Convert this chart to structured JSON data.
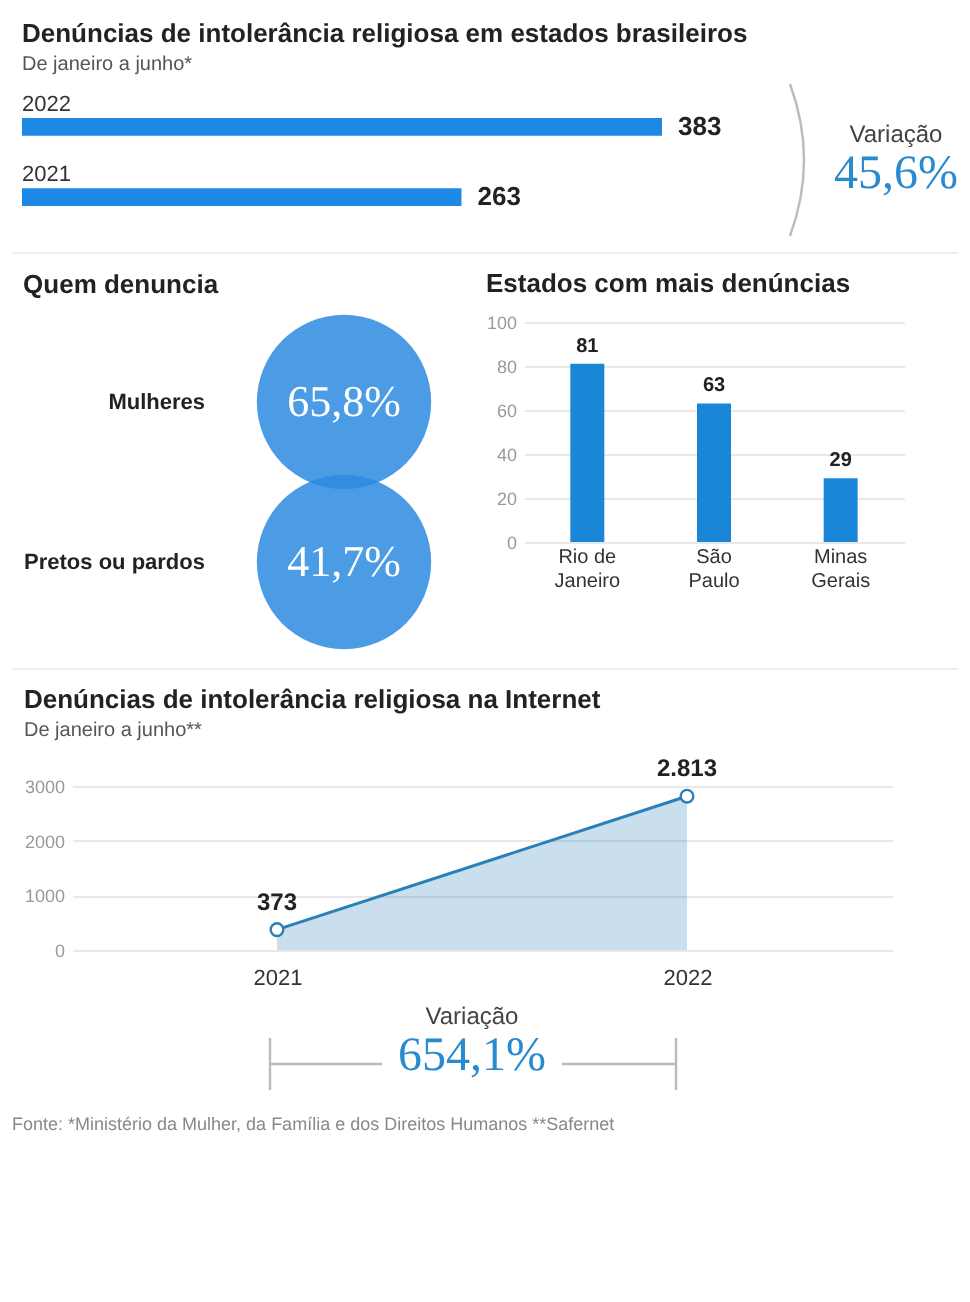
{
  "chart_data": [
    {
      "type": "bar",
      "orientation": "horizontal",
      "title": "Denúncias de intolerância religiosa em estados brasileiros",
      "subtitle": "De janeiro a junho*",
      "categories": [
        "2022",
        "2021"
      ],
      "values": [
        383,
        263
      ],
      "color": "#1e88e5",
      "data_labels": true,
      "annotations": [
        "Variação",
        "45,6%"
      ]
    },
    {
      "type": "other",
      "title": "Quem denuncia",
      "categories": [
        "Mulheres",
        "Pretos ou pardos"
      ],
      "values": [
        65.8,
        41.7
      ],
      "value_labels": [
        "65,8%",
        "41,7%"
      ],
      "color": "#2b8be0"
    },
    {
      "type": "bar",
      "title": "Estados com mais denúncias",
      "categories": [
        "Rio de Janeiro",
        "São Paulo",
        "Minas Gerais"
      ],
      "values": [
        81,
        63,
        29
      ],
      "color": "#1a86d8",
      "ylim": [
        0,
        100
      ],
      "yticks": [
        0,
        20,
        40,
        60,
        80,
        100
      ],
      "grid": "y",
      "data_labels": true
    },
    {
      "type": "area",
      "title": "Denúncias de intolerância religiosa na Internet",
      "subtitle": "De janeiro a junho**",
      "categories": [
        "2021",
        "2022"
      ],
      "values": [
        373,
        2813
      ],
      "color": "#2a7fb8",
      "ylim": [
        0,
        3000
      ],
      "yticks": [
        0,
        1000,
        2000,
        3000
      ],
      "grid": "y",
      "marker": "circle",
      "value_labels": [
        "373",
        "2.813"
      ],
      "annotations": [
        "Variação",
        "654,1%",
        "Fonte: *Ministério da Mulher, da Família e dos Direitos Humanos  **Safernet"
      ]
    }
  ]
}
